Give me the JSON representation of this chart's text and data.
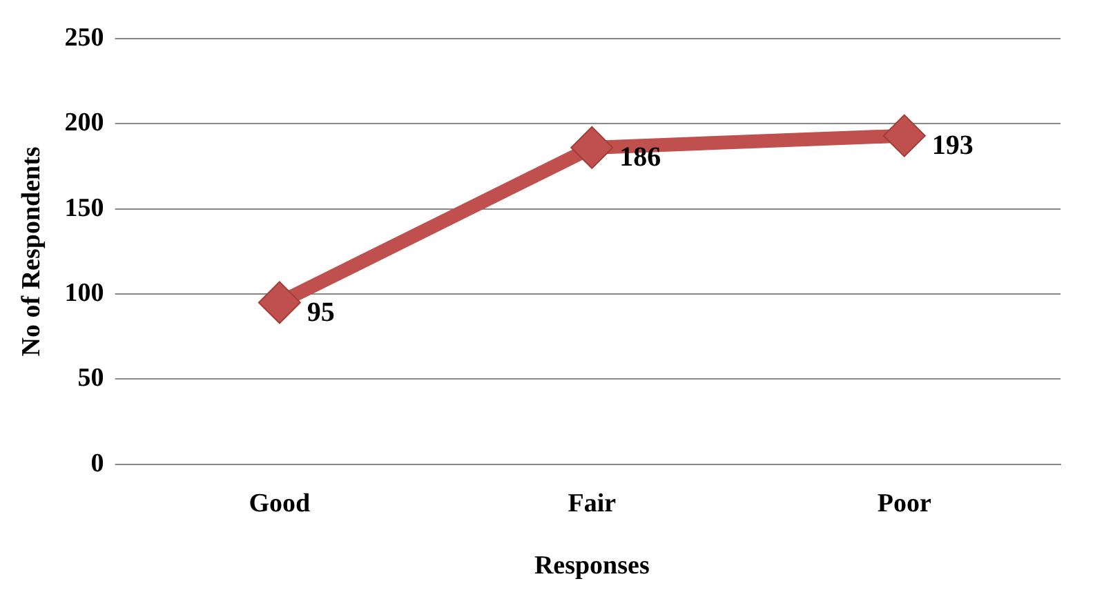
{
  "chart_data": {
    "type": "line",
    "categories": [
      "Good",
      "Fair",
      "Poor"
    ],
    "values": [
      95,
      186,
      193
    ],
    "color": "#c0504d",
    "xlabel": "Responses",
    "ylabel": "No of Respondents",
    "ylim": [
      0,
      250
    ],
    "yticks": [
      0,
      50,
      100,
      150,
      200,
      250
    ],
    "grid": "y",
    "marker": "diamond",
    "line_style": "solid",
    "data_labels": true,
    "legend": false
  }
}
